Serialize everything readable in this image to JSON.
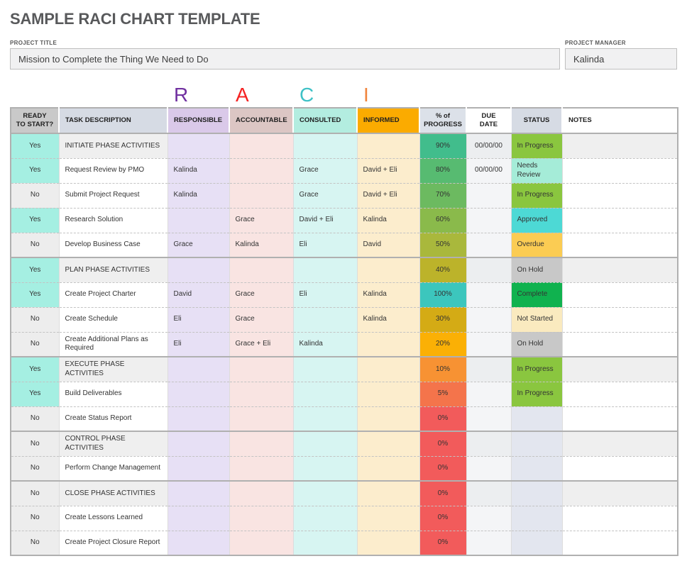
{
  "page": {
    "title": "SAMPLE RACI CHART TEMPLATE"
  },
  "project": {
    "title_label": "PROJECT TITLE",
    "title_value": "Mission to Complete the Thing We Need to Do",
    "manager_label": "PROJECT MANAGER",
    "manager_value": "Kalinda"
  },
  "raci_letters": [
    {
      "letter": "R",
      "color": "#7030a0"
    },
    {
      "letter": "A",
      "color": "#f52222"
    },
    {
      "letter": "C",
      "color": "#3ec1c6"
    },
    {
      "letter": "I",
      "color": "#f0843c"
    }
  ],
  "table": {
    "columns": [
      {
        "key": "ready",
        "label": "READY\nTO START?",
        "header_bg": "#c9c9c9",
        "width": 68
      },
      {
        "key": "task",
        "label": "TASK DESCRIPTION",
        "header_bg": "#d6dbe4",
        "width": 153
      },
      {
        "key": "responsible",
        "label": "RESPONSIBLE",
        "header_bg": "#dac9e9",
        "width": 87,
        "body_bg": "#e7e0f5"
      },
      {
        "key": "accountable",
        "label": "ACCOUNTABLE",
        "header_bg": "#dcc6c4",
        "width": 90,
        "body_bg": "#f9e4e2"
      },
      {
        "key": "consulted",
        "label": "CONSULTED",
        "header_bg": "#b3ede0",
        "width": 90,
        "body_bg": "#d7f5f2"
      },
      {
        "key": "informed",
        "label": "INFORMED",
        "header_bg": "#fbab00",
        "width": 88,
        "body_bg": "#fcedcd"
      },
      {
        "key": "progress",
        "label": "% of\nPROGRESS",
        "header_bg": "#dce1e9",
        "width": 66
      },
      {
        "key": "due",
        "label": "DUE\nDATE",
        "header_bg": "#ffffff",
        "width": 63
      },
      {
        "key": "status",
        "label": "STATUS",
        "header_bg": "#d6dbe4",
        "width": 72
      },
      {
        "key": "notes",
        "label": "NOTES",
        "header_bg": "#ffffff",
        "width": 163
      }
    ],
    "colors": {
      "ready_yes": "#a5efe2",
      "ready_no": "#ededed",
      "phase_bg": "#efefef",
      "plain_bg": "#ffffff",
      "due_bg": "#f4f5f7",
      "due_phase_bg": "#eceef0",
      "status_empty": "#e3e6ef"
    },
    "rows": [
      {
        "ready": "Yes",
        "task": "INITIATE PHASE ACTIVITIES",
        "phase": true,
        "responsible": "",
        "accountable": "",
        "consulted": "",
        "informed": "",
        "progress": "90%",
        "progress_color": "#41bd8c",
        "due": "00/00/00",
        "status": "In Progress",
        "status_color": "#8ac63f",
        "notes": ""
      },
      {
        "ready": "Yes",
        "task": "Request Review by PMO",
        "responsible": "Kalinda",
        "accountable": "",
        "consulted": "Grace",
        "informed": "David + Eli",
        "progress": "80%",
        "progress_color": "#57bb71",
        "due": "00/00/00",
        "status": "Needs Review",
        "status_color": "#a5ecd8",
        "notes": ""
      },
      {
        "ready": "No",
        "task": "Submit Project Request",
        "responsible": "Kalinda",
        "accountable": "",
        "consulted": "Grace",
        "informed": "David + Eli",
        "progress": "70%",
        "progress_color": "#6cba60",
        "due": "",
        "status": "In Progress",
        "status_color": "#8ac63f",
        "notes": ""
      },
      {
        "ready": "Yes",
        "task": "Research Solution",
        "responsible": "",
        "accountable": "Grace",
        "consulted": "David + Eli",
        "informed": "Kalinda",
        "progress": "60%",
        "progress_color": "#8aba4b",
        "due": "",
        "status": "Approved",
        "status_color": "#4dd9d5",
        "notes": ""
      },
      {
        "ready": "No",
        "task": "Develop Business Case",
        "responsible": "Grace",
        "accountable": "Kalinda",
        "consulted": "Eli",
        "informed": "David",
        "progress": "50%",
        "progress_color": "#a9b83c",
        "due": "",
        "status": "Overdue",
        "status_color": "#fbcc53",
        "notes": ""
      },
      {
        "ready": "Yes",
        "task": "PLAN PHASE ACTIVITIES",
        "phase": true,
        "group_start": true,
        "responsible": "",
        "accountable": "",
        "consulted": "",
        "informed": "",
        "progress": "40%",
        "progress_color": "#bcb32a",
        "due": "",
        "status": "On Hold",
        "status_color": "#c8c8c8",
        "notes": ""
      },
      {
        "ready": "Yes",
        "task": "Create Project Charter",
        "responsible": "David",
        "accountable": "Grace",
        "consulted": "Eli",
        "informed": "Kalinda",
        "progress": "100%",
        "progress_color": "#3cc6bd",
        "due": "",
        "status": "Complete",
        "status_color": "#10b24f",
        "notes": ""
      },
      {
        "ready": "No",
        "task": "Create Schedule",
        "responsible": "Eli",
        "accountable": "Grace",
        "consulted": "",
        "informed": "Kalinda",
        "progress": "30%",
        "progress_color": "#d4ab15",
        "due": "",
        "status": "Not Started",
        "status_color": "#faeabf",
        "notes": ""
      },
      {
        "ready": "No",
        "task": "Create Additional Plans as Required",
        "responsible": "Eli",
        "accountable": "Grace + Eli",
        "consulted": "Kalinda",
        "informed": "",
        "progress": "20%",
        "progress_color": "#fbb005",
        "due": "",
        "status": "On Hold",
        "status_color": "#c8c8c8",
        "notes": ""
      },
      {
        "ready": "Yes",
        "task": "EXECUTE PHASE ACTIVITIES",
        "phase": true,
        "group_start": true,
        "responsible": "",
        "accountable": "",
        "consulted": "",
        "informed": "",
        "progress": "10%",
        "progress_color": "#f79233",
        "due": "",
        "status": "In Progress",
        "status_color": "#8ac63f",
        "notes": ""
      },
      {
        "ready": "Yes",
        "task": "Build Deliverables",
        "responsible": "",
        "accountable": "",
        "consulted": "",
        "informed": "",
        "progress": "5%",
        "progress_color": "#f4744b",
        "due": "",
        "status": "In Progress",
        "status_color": "#8ac63f",
        "notes": ""
      },
      {
        "ready": "No",
        "task": "Create Status Report",
        "responsible": "",
        "accountable": "",
        "consulted": "",
        "informed": "",
        "progress": "0%",
        "progress_color": "#f25b5b",
        "due": "",
        "status": "",
        "notes": ""
      },
      {
        "ready": "No",
        "task": "CONTROL PHASE ACTIVITIES",
        "phase": true,
        "group_start": true,
        "responsible": "",
        "accountable": "",
        "consulted": "",
        "informed": "",
        "progress": "0%",
        "progress_color": "#f25b5b",
        "due": "",
        "status": "",
        "notes": ""
      },
      {
        "ready": "No",
        "task": "Perform Change Management",
        "responsible": "",
        "accountable": "",
        "consulted": "",
        "informed": "",
        "progress": "0%",
        "progress_color": "#f25b5b",
        "due": "",
        "status": "",
        "notes": ""
      },
      {
        "ready": "No",
        "task": "CLOSE PHASE ACTIVITIES",
        "phase": true,
        "group_start": true,
        "responsible": "",
        "accountable": "",
        "consulted": "",
        "informed": "",
        "progress": "0%",
        "progress_color": "#f25b5b",
        "due": "",
        "status": "",
        "notes": ""
      },
      {
        "ready": "No",
        "task": "Create Lessons Learned",
        "responsible": "",
        "accountable": "",
        "consulted": "",
        "informed": "",
        "progress": "0%",
        "progress_color": "#f25b5b",
        "due": "",
        "status": "",
        "notes": ""
      },
      {
        "ready": "No",
        "task": "Create Project Closure Report",
        "responsible": "",
        "accountable": "",
        "consulted": "",
        "informed": "",
        "progress": "0%",
        "progress_color": "#f25b5b",
        "due": "",
        "status": "",
        "notes": ""
      }
    ]
  }
}
